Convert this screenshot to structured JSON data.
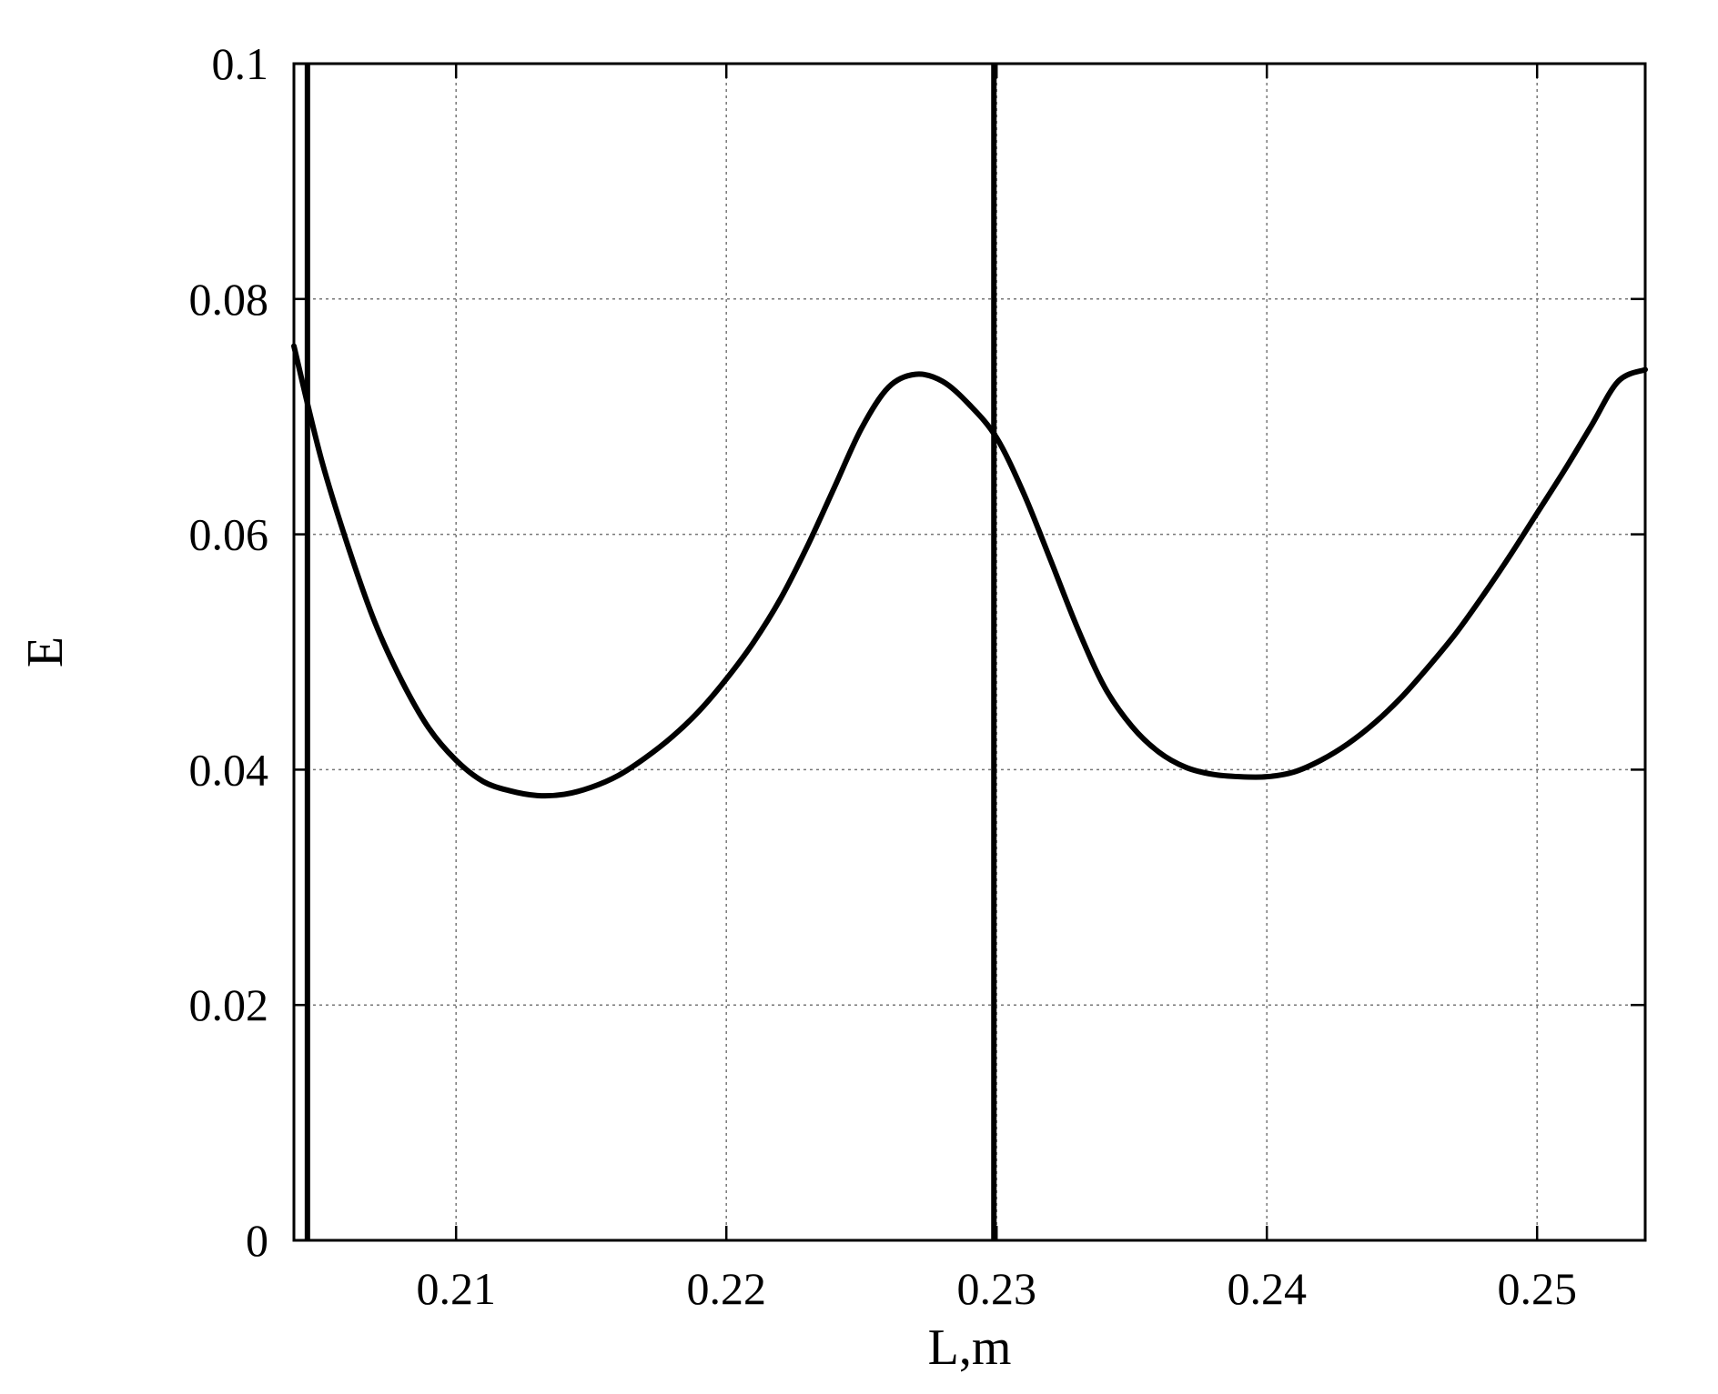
{
  "chart_data": {
    "type": "line",
    "title": "",
    "xlabel": "L,m",
    "ylabel": "E",
    "xlim": [
      0.204,
      0.254
    ],
    "ylim": [
      0,
      0.1
    ],
    "grid": true,
    "legend": "none",
    "x_ticks": [
      {
        "value": 0.21,
        "label": "0.21"
      },
      {
        "value": 0.22,
        "label": "0.22"
      },
      {
        "value": 0.23,
        "label": "0.23"
      },
      {
        "value": 0.24,
        "label": "0.24"
      },
      {
        "value": 0.25,
        "label": "0.25"
      }
    ],
    "y_ticks": [
      {
        "value": 0,
        "label": "0"
      },
      {
        "value": 0.02,
        "label": "0.02"
      },
      {
        "value": 0.04,
        "label": "0.04"
      },
      {
        "value": 0.06,
        "label": "0.06"
      },
      {
        "value": 0.08,
        "label": "0.08"
      },
      {
        "value": 0.1,
        "label": "0.1"
      }
    ],
    "series": [
      {
        "color": "#000000",
        "x": [
          0.204,
          0.205,
          0.206,
          0.207,
          0.208,
          0.209,
          0.21,
          0.211,
          0.212,
          0.213,
          0.214,
          0.215,
          0.216,
          0.217,
          0.218,
          0.219,
          0.22,
          0.221,
          0.222,
          0.223,
          0.224,
          0.225,
          0.226,
          0.227,
          0.228,
          0.229,
          0.23,
          0.231,
          0.232,
          0.233,
          0.234,
          0.235,
          0.236,
          0.237,
          0.238,
          0.239,
          0.24,
          0.241,
          0.242,
          0.243,
          0.244,
          0.245,
          0.246,
          0.247,
          0.248,
          0.249,
          0.25,
          0.251,
          0.252,
          0.253,
          0.254
        ],
        "y": [
          0.076,
          0.0665,
          0.059,
          0.0525,
          0.0475,
          0.0435,
          0.0408,
          0.039,
          0.0382,
          0.0378,
          0.0379,
          0.0385,
          0.0395,
          0.041,
          0.0428,
          0.045,
          0.0477,
          0.0508,
          0.0545,
          0.059,
          0.064,
          0.069,
          0.0725,
          0.0736,
          0.073,
          0.071,
          0.0682,
          0.0635,
          0.0578,
          0.052,
          0.047,
          0.0437,
          0.0415,
          0.0402,
          0.0396,
          0.0394,
          0.0394,
          0.0398,
          0.0408,
          0.0422,
          0.044,
          0.0462,
          0.0488,
          0.0516,
          0.0548,
          0.0582,
          0.0618,
          0.0654,
          0.0692,
          0.073,
          0.074
        ]
      }
    ],
    "vertical_lines": [
      0.2045,
      0.2299
    ]
  }
}
